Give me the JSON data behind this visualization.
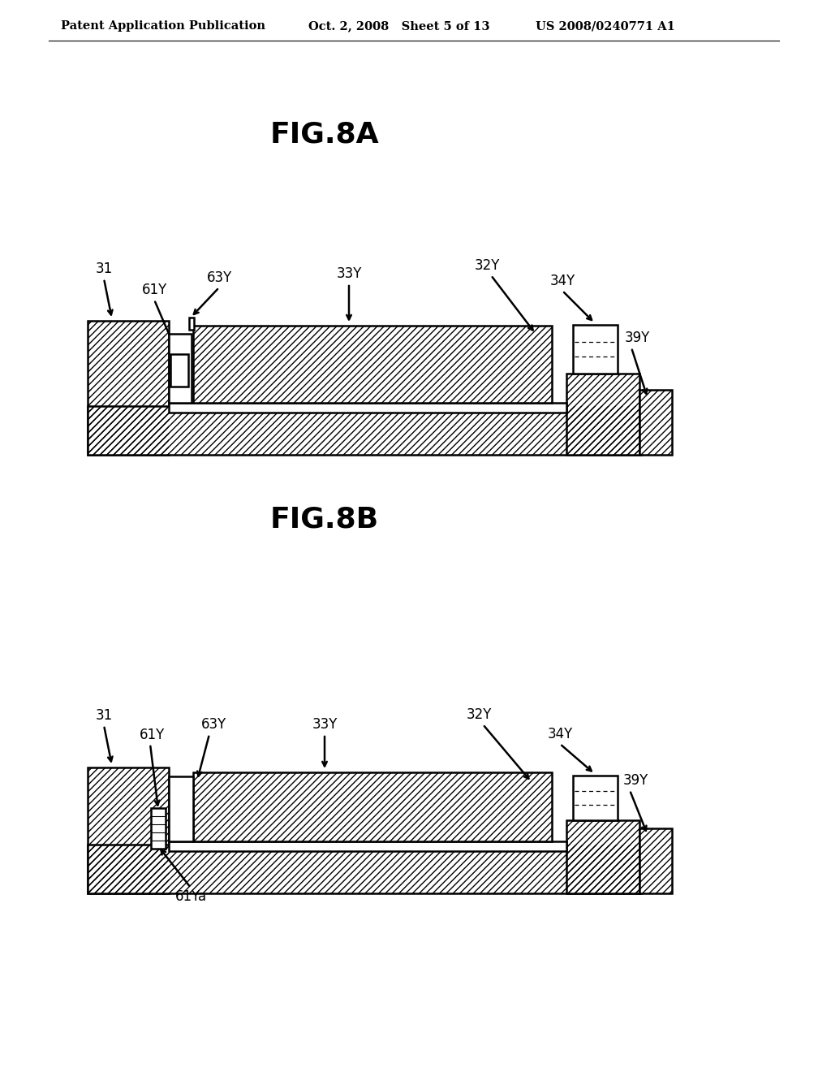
{
  "bg_color": "#ffffff",
  "header_left": "Patent Application Publication",
  "header_mid": "Oct. 2, 2008   Sheet 5 of 13",
  "header_right": "US 2008/0240771 A1",
  "fig_title_A": "FIG.8A",
  "fig_title_B": "FIG.8B",
  "line_color": "#000000",
  "line_width": 1.8,
  "thin_lw": 1.0
}
